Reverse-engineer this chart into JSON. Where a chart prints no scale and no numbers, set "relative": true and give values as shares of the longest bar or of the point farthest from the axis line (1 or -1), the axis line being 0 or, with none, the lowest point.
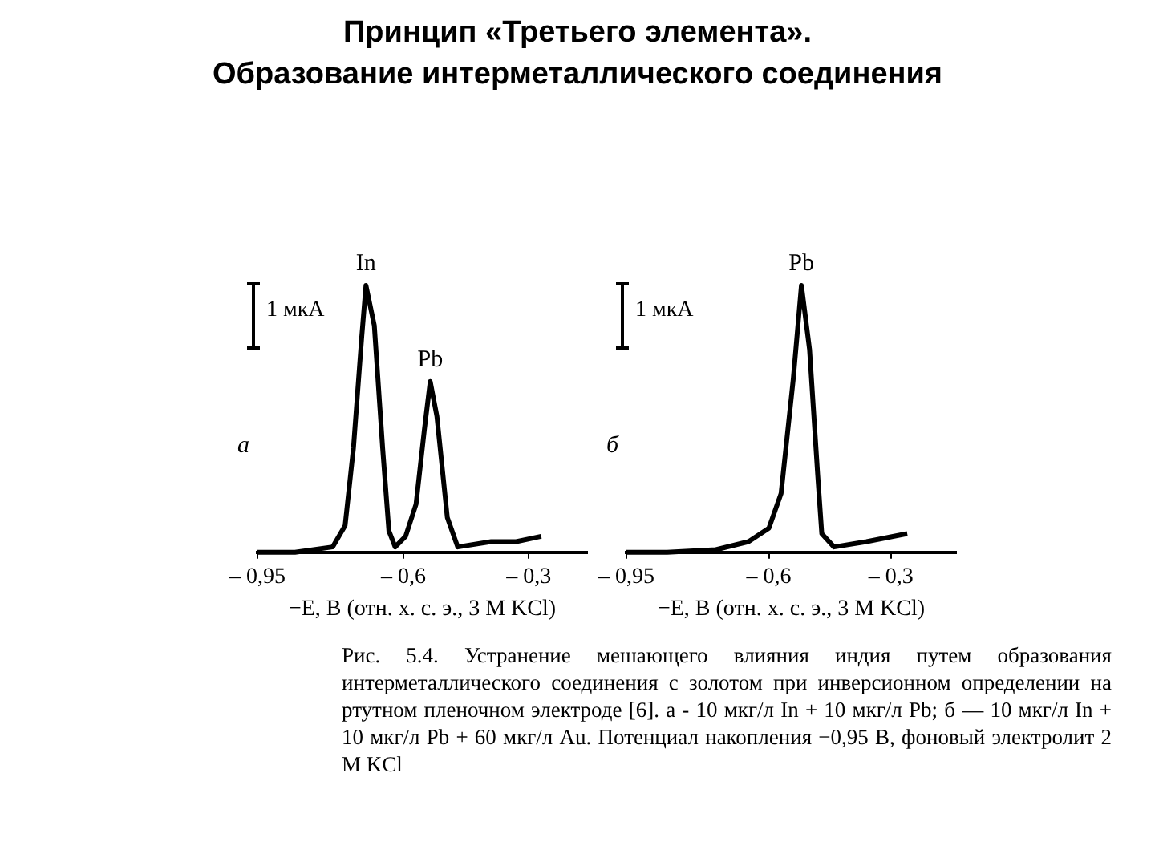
{
  "chart_data": [
    {
      "type": "line",
      "title": "Принцип «Третьего элемента».\nОбразование интерметаллического соединения",
      "relative": true,
      "xlabel": "−E, В (отн. х. с. э., 3 М KCl)",
      "xlim": [
        -0.95,
        -0.16
      ],
      "xticks": [
        {
          "value": -0.95,
          "label": "– 0,95"
        },
        {
          "value": -0.6,
          "label": "– 0,6"
        },
        {
          "value": -0.3,
          "label": "– 0,3"
        }
      ],
      "marker": "none",
      "line_style": "solid",
      "x": [
        -0.95,
        -0.86,
        -0.77,
        -0.74,
        -0.72,
        -0.7,
        -0.69,
        -0.67,
        -0.65,
        -0.635,
        -0.62,
        -0.595,
        -0.57,
        -0.55,
        -0.536,
        -0.52,
        -0.495,
        -0.47,
        -0.39,
        -0.33,
        -0.27
      ],
      "series": [
        {
          "color": "#000000",
          "values": [
            0,
            0,
            0.02,
            0.1,
            0.39,
            0.81,
            1,
            0.85,
            0.39,
            0.08,
            0.02,
            0.06,
            0.18,
            0.46,
            0.64,
            0.51,
            0.13,
            0.02,
            0.04,
            0.04,
            0.06
          ]
        }
      ],
      "annotations": [
        "а",
        "1 мкА",
        {
          "text": "In",
          "x": -0.69,
          "y": 1
        },
        {
          "text": "Pb",
          "x": -0.536,
          "y": 0.64
        }
      ]
    },
    {
      "type": "line",
      "relative": true,
      "xlabel": "−E, В (отн. х. с. э., 3 М KCl)",
      "xlim": [
        -0.95,
        -0.14
      ],
      "xticks": [
        {
          "value": -0.95,
          "label": "– 0,95"
        },
        {
          "value": -0.6,
          "label": "– 0,6"
        },
        {
          "value": -0.3,
          "label": "– 0,3"
        }
      ],
      "marker": "none",
      "line_style": "solid",
      "x": [
        -0.95,
        -0.85,
        -0.73,
        -0.65,
        -0.6,
        -0.57,
        -0.54,
        -0.52,
        -0.5,
        -0.48,
        -0.47,
        -0.44,
        -0.36,
        -0.26
      ],
      "series": [
        {
          "color": "#000000",
          "values": [
            0,
            0,
            0.01,
            0.04,
            0.09,
            0.22,
            0.65,
            1,
            0.76,
            0.29,
            0.07,
            0.02,
            0.04,
            0.07
          ]
        }
      ],
      "annotations": [
        "б",
        "1 мкА",
        {
          "text": "Pb",
          "x": -0.52,
          "y": 1
        },
        "Рис. 5.4. Устранение мешающего влияния индия путем образования интерметаллического соединения с золотом при инверсионном определении на ртутном пленочном электроде [6]. а - 10 мкг/л In + 10 мкг/л Pb; б — 10 мкг/л In + 10 мкг/л Pb + 60 мкг/л Au. Потенциал накопления −0,95 В, фоновый электролит 2 М KCl"
      ]
    }
  ]
}
